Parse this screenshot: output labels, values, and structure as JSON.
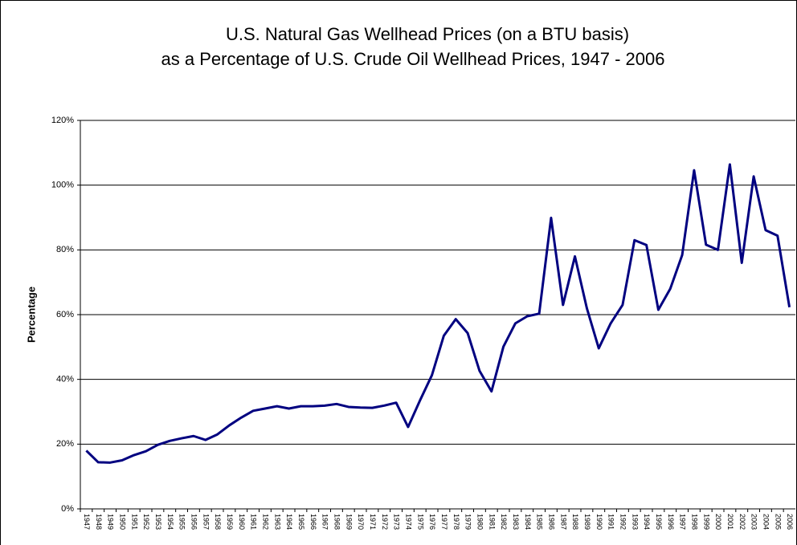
{
  "chart_data": {
    "type": "line",
    "title": [
      "U.S. Natural Gas Wellhead Prices (on a BTU basis)",
      "as a Percentage of U.S. Crude Oil Wellhead Prices, 1947 - 2006"
    ],
    "y_label": "Percentage",
    "categories": [
      "1947",
      "1948",
      "1949",
      "1950",
      "1951",
      "1952",
      "1953",
      "1954",
      "1955",
      "1956",
      "1957",
      "1958",
      "1959",
      "1960",
      "1961",
      "1962",
      "1963",
      "1964",
      "1965",
      "1966",
      "1967",
      "1968",
      "1969",
      "1970",
      "1971",
      "1972",
      "1973",
      "1974",
      "1975",
      "1976",
      "1977",
      "1978",
      "1979",
      "1980",
      "1981",
      "1982",
      "1983",
      "1984",
      "1985",
      "1986",
      "1987",
      "1988",
      "1989",
      "1990",
      "1991",
      "1992",
      "1993",
      "1994",
      "1995",
      "1996",
      "1997",
      "1998",
      "1999",
      "2000",
      "2001",
      "2002",
      "2003",
      "2004",
      "2005",
      "2006"
    ],
    "series": [
      {
        "color": "#000080",
        "values": [
          18,
          14.4,
          14.3,
          15,
          16.6,
          17.8,
          19.8,
          21,
          21.8,
          22.5,
          21.3,
          23,
          25.8,
          28.2,
          30.3,
          31,
          31.7,
          31,
          31.7,
          31.7,
          31.9,
          32.4,
          31.5,
          31.3,
          31.2,
          31.9,
          32.8,
          25.3,
          33.5,
          41.3,
          53.5,
          58.6,
          54.3,
          42.6,
          36.3,
          50.1,
          57.3,
          59.5,
          60.3,
          89.9,
          63,
          78,
          62,
          49.6,
          57.3,
          63,
          83,
          81.5,
          61.5,
          68,
          78.4,
          104.6,
          81.6,
          80,
          106.4,
          76,
          102.7,
          86.1,
          84.4,
          62.3
        ]
      }
    ],
    "ylim": [
      0,
      120
    ],
    "yticks": [
      {
        "value": 0,
        "label": "0%"
      },
      {
        "value": 20,
        "label": "20%"
      },
      {
        "value": 40,
        "label": "40%"
      },
      {
        "value": 60,
        "label": "60%"
      },
      {
        "value": 80,
        "label": "80%"
      },
      {
        "value": 100,
        "label": "100%"
      },
      {
        "value": 120,
        "label": "120%"
      }
    ],
    "grid": true
  }
}
